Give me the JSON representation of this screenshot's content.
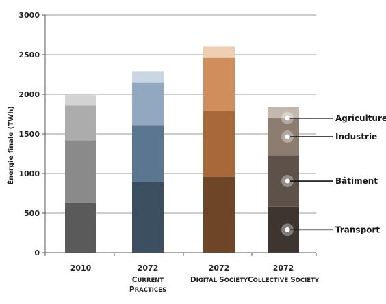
{
  "chart_data": {
    "type": "bar",
    "stacked": true,
    "categories": [
      {
        "year": "2010",
        "subtitle": []
      },
      {
        "year": "2072",
        "subtitle": [
          "Current",
          "practices"
        ]
      },
      {
        "year": "2072",
        "subtitle": [
          "Digital society"
        ]
      },
      {
        "year": "2072",
        "subtitle": [
          "Collective society"
        ]
      }
    ],
    "series": [
      {
        "name": "Transport",
        "values": [
          630,
          890,
          960,
          580
        ]
      },
      {
        "name": "Bâtiment",
        "values": [
          790,
          720,
          830,
          650
        ]
      },
      {
        "name": "Industrie",
        "values": [
          440,
          540,
          670,
          470
        ]
      },
      {
        "name": "Agriculture",
        "values": [
          130,
          140,
          140,
          140
        ]
      }
    ],
    "bar_colors": [
      [
        "#5a5a5a",
        "#8a8a8a",
        "#acacac",
        "#d3d3d3"
      ],
      [
        "#3c4f61",
        "#5b7690",
        "#91a8c0",
        "#cad6e2"
      ],
      [
        "#6e4526",
        "#a8683a",
        "#cf8e5b",
        "#efcfb4"
      ],
      [
        "#3e3530",
        "#5e514a",
        "#8d7c70",
        "#c4b8ae"
      ]
    ],
    "callout_labels": [
      "Agriculture",
      "Industrie",
      "Bâtiment",
      "Transport"
    ],
    "ylabel": "Énergie finale (TWh)",
    "xlabel": "",
    "ylim": [
      0,
      3000
    ],
    "yticks": [
      0,
      500,
      1000,
      1500,
      2000,
      2500,
      3000
    ],
    "grid": true,
    "legend": "callouts-right"
  }
}
